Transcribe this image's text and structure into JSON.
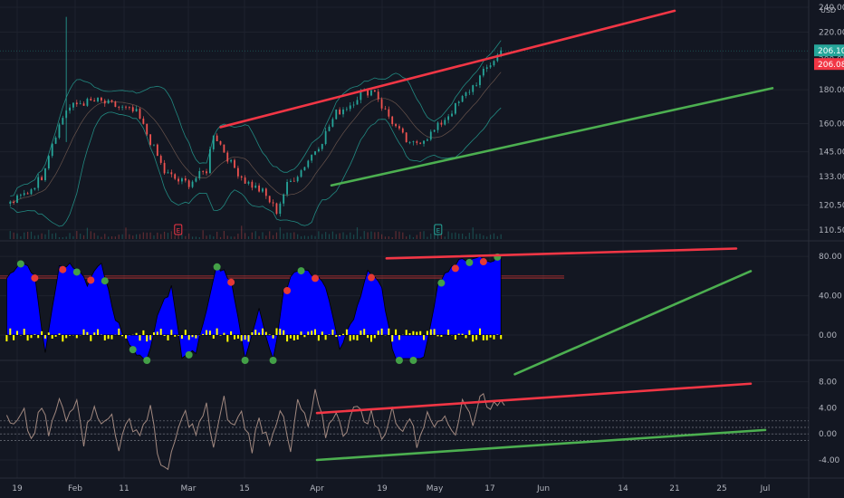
{
  "chart_data": [
    {
      "type": "line",
      "title": "",
      "panel": "price",
      "currency": "USD",
      "ylim": [
        107,
        243
      ],
      "y_scale": "log",
      "yticks": [
        "240.00",
        "220.00",
        "200.00",
        "180.00",
        "160.00",
        "145.00",
        "133.00",
        "120.50",
        "110.50"
      ],
      "last_price": "206.10",
      "last_price_color": "#26a69a",
      "second_price": "206.08",
      "second_price_color": "#f23645",
      "series": [
        {
          "x": [
            "Jan 17",
            "Jan 22",
            "Jan 26",
            "Jan 29",
            "Feb 2",
            "Feb 6",
            "Feb 11",
            "Feb 16",
            "Feb 22",
            "Mar 1",
            "Mar 5",
            "Mar 8",
            "Mar 13",
            "Mar 15",
            "Mar 20",
            "Mar 24",
            "Mar 29",
            "Apr 2",
            "Apr 5",
            "Apr 9",
            "Apr 15",
            "Apr 19",
            "Apr 23",
            "Apr 26",
            "Apr 30",
            "May 2",
            "May 6",
            "May 10",
            "May 15",
            "May 17",
            "May 21",
            "May 24",
            "May 29",
            "Jun 2",
            "Jun 5"
          ],
          "values": [
            121,
            126,
            133,
            150,
            168,
            172,
            173,
            170,
            166,
            135,
            131,
            130,
            136,
            155,
            139,
            131,
            126,
            118,
            129,
            136,
            151,
            166,
            171,
            178,
            180,
            170,
            158,
            148,
            153,
            156,
            165,
            172,
            185,
            197,
            206
          ]
        }
      ],
      "annotations": [
        {
          "kind": "trendline",
          "color": "#f23645",
          "from": {
            "x": "Mar 9",
            "y": 158
          },
          "to": {
            "x": "Jun 21",
            "y": 237
          }
        },
        {
          "kind": "trendline",
          "color": "#4caf50",
          "from": {
            "x": "Apr 5",
            "y": 129
          },
          "to": {
            "x": "Jul 2",
            "y": 181
          }
        },
        {
          "kind": "earnings",
          "label": "E",
          "x": "Feb 27",
          "color": "#f23645"
        },
        {
          "kind": "earnings",
          "label": "E",
          "x": "May 2",
          "color": "#26a69a"
        }
      ],
      "colors": {
        "up": "#26a69a",
        "down": "#ef5350",
        "bands": "#26a69a"
      }
    },
    {
      "type": "area",
      "panel": "oscillator",
      "ylim": [
        -24,
        94
      ],
      "yticks": [
        "80.00",
        "40.00",
        "0.00"
      ],
      "levels": [
        60,
        58
      ],
      "colors": {
        "fill": "#0000ff",
        "histogram": "#ffff00",
        "top_dot": "#e53935",
        "bottom_dot": "#43a047",
        "level": "#e53935"
      },
      "series": [
        {
          "x": [
            "Jan 16",
            "Jan 20",
            "Jan 24",
            "Jan 27",
            "Jan 31",
            "Feb 4",
            "Feb 8",
            "Feb 12",
            "Feb 16",
            "Feb 21",
            "Feb 25",
            "Feb 28",
            "Mar 3",
            "Mar 6",
            "Mar 10",
            "Mar 13",
            "Mar 16",
            "Mar 20",
            "Mar 24",
            "Mar 28",
            "Apr 1",
            "Apr 4",
            "Apr 8",
            "Apr 12",
            "Apr 16",
            "Apr 20",
            "Apr 24",
            "Apr 28",
            "May 2",
            "May 6",
            "May 10",
            "May 14",
            "May 18",
            "May 22",
            "May 26",
            "May 30",
            "Jun 2",
            "Jun 5"
          ],
          "values": [
            55,
            78,
            60,
            -18,
            72,
            70,
            52,
            74,
            16,
            -14,
            -32,
            22,
            48,
            -22,
            -16,
            22,
            72,
            56,
            -26,
            30,
            -32,
            45,
            68,
            62,
            50,
            -12,
            16,
            68,
            48,
            -35,
            -38,
            -24,
            50,
            72,
            78,
            80,
            76,
            82
          ]
        }
      ],
      "annotations": [
        {
          "kind": "trendline",
          "color": "#f23645",
          "from": {
            "x": "Apr 20",
            "y": 78
          },
          "to": {
            "x": "Jun 27",
            "y": 88
          }
        },
        {
          "kind": "trendline",
          "color": "#4caf50",
          "from": {
            "x": "May 24",
            "y": -40
          },
          "to": {
            "x": "Jun 29",
            "y": 65
          }
        }
      ]
    },
    {
      "type": "line",
      "panel": "momentum",
      "ylim": [
        -6.5,
        11
      ],
      "yticks": [
        "8.00",
        "4.00",
        "0.00",
        "-4.00"
      ],
      "levels": [
        2,
        1,
        0,
        -1
      ],
      "colors": {
        "line": "#a1887f",
        "level": "#b2b5be"
      },
      "series": [
        {
          "x": [
            "Jan 16",
            "Jan 18",
            "Jan 21",
            "Jan 23",
            "Jan 26",
            "Jan 28",
            "Jan 31",
            "Feb 2",
            "Feb 5",
            "Feb 7",
            "Feb 10",
            "Feb 12",
            "Feb 15",
            "Feb 17",
            "Feb 20",
            "Feb 23",
            "Feb 26",
            "Feb 28",
            "Mar 2",
            "Mar 5",
            "Mar 7",
            "Mar 10",
            "Mar 13",
            "Mar 15",
            "Mar 18",
            "Mar 20",
            "Mar 23",
            "Mar 26",
            "Mar 28",
            "Mar 31",
            "Apr 3",
            "Apr 6",
            "Apr 8",
            "Apr 11",
            "Apr 13",
            "Apr 16",
            "Apr 19",
            "Apr 21",
            "Apr 24",
            "Apr 27",
            "Apr 29",
            "May 2",
            "May 5",
            "May 7",
            "May 10",
            "May 12",
            "May 15",
            "May 18",
            "May 20",
            "May 23",
            "May 25",
            "May 28",
            "May 31",
            "Jun 2",
            "Jun 4",
            "Jun 6"
          ],
          "values": [
            2,
            1,
            3,
            -1,
            4,
            0,
            5,
            2,
            6,
            -1,
            5,
            1,
            3,
            -2,
            2,
            0,
            4,
            -3,
            -6,
            1,
            3,
            0,
            4,
            -2,
            5,
            1,
            3,
            -2,
            2,
            -1,
            4,
            -3,
            5,
            1,
            6,
            0,
            4,
            -1,
            5,
            2,
            3,
            -1,
            4,
            0,
            3,
            -2,
            4,
            1,
            3,
            0,
            5,
            2,
            7,
            3,
            5,
            5
          ]
        }
      ],
      "annotations": [
        {
          "kind": "trendline",
          "color": "#f23645",
          "from": {
            "x": "Apr 1",
            "y": 3.2
          },
          "to": {
            "x": "Jun 29",
            "y": 7.7
          }
        },
        {
          "kind": "trendline",
          "color": "#4caf50",
          "from": {
            "x": "Apr 1",
            "y": -4.0
          },
          "to": {
            "x": "Jul 1",
            "y": 0.6
          }
        }
      ]
    }
  ],
  "x_axis": {
    "labels": [
      "19",
      "Feb",
      "11",
      "Mar",
      "15",
      "Apr",
      "19",
      "May",
      "17",
      "Jun",
      "14",
      "21",
      "25",
      "Jul"
    ],
    "dates": [
      "Jan 19",
      "Feb 1",
      "Feb 11",
      "Mar 1",
      "Mar 15",
      "Apr 1",
      "Apr 19",
      "May 1",
      "May 17",
      "Jun 1",
      "Jun 14",
      "Jun 21",
      "Jun 25",
      "Jul 1"
    ]
  }
}
